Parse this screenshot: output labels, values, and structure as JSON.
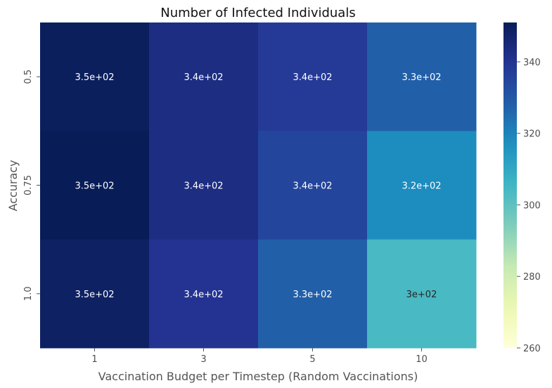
{
  "chart_data": {
    "type": "heatmap",
    "title": "Number of Infected Individuals",
    "xlabel": "Vaccination Budget per Timestep (Random Vaccinations)",
    "ylabel": "Accuracy",
    "x_categories": [
      "1",
      "3",
      "5",
      "10"
    ],
    "y_categories": [
      "0.5",
      "0.75",
      "1.0"
    ],
    "values": [
      [
        350,
        343,
        338,
        328
      ],
      [
        351,
        343,
        335,
        318
      ],
      [
        349,
        340,
        328,
        304
      ]
    ],
    "cell_labels": [
      [
        "3.5e+02",
        "3.4e+02",
        "3.4e+02",
        "3.3e+02"
      ],
      [
        "3.5e+02",
        "3.4e+02",
        "3.4e+02",
        "3.2e+02"
      ],
      [
        "3.5e+02",
        "3.4e+02",
        "3.3e+02",
        "3e+02"
      ]
    ],
    "colorbar": {
      "colormap": "YlGnBu",
      "vmin": 260,
      "vmax": 351,
      "ticks": [
        260,
        280,
        300,
        320,
        340
      ]
    },
    "grid": false
  }
}
